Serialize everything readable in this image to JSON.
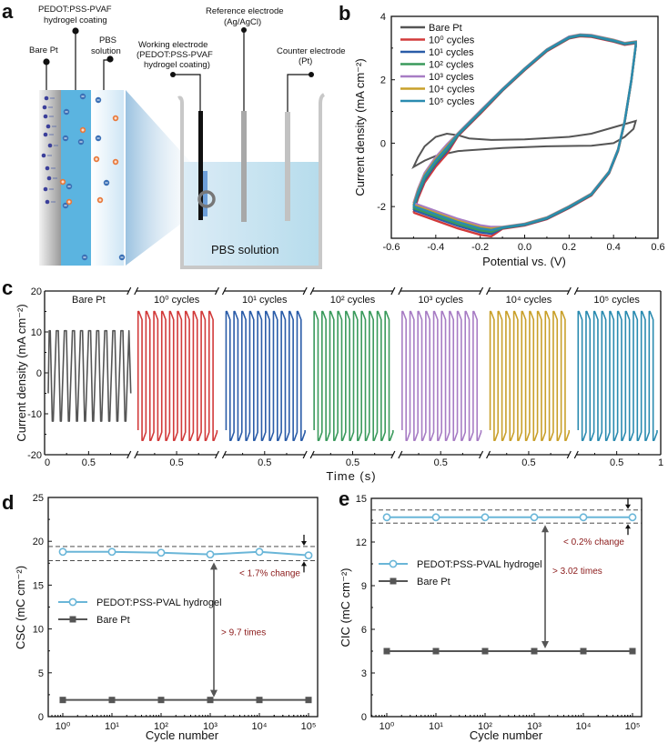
{
  "panels": {
    "a": {
      "label": "a"
    },
    "b": {
      "label": "b"
    },
    "c": {
      "label": "c"
    },
    "d": {
      "label": "d"
    },
    "e": {
      "label": "e"
    }
  },
  "diagram": {
    "labels": {
      "bare_pt": "Bare Pt",
      "coating": "PEDOT:PSS-PVAF hydrogel coating",
      "pbs_inset": "PBS solution",
      "working": "Working electrode (PEDOT:PSS-PVAF hydrogel coating)",
      "reference": "Reference electrode (Ag/AgCl)",
      "counter": "Counter electrode (Pt)",
      "pbs_beaker": "PBS solution"
    },
    "colors": {
      "hydrogel": "#5bb4e0",
      "solution": "#bfe2f0",
      "anion": "#3a6fb5",
      "cation": "#e8793b",
      "electron": "#3b3f9a"
    }
  },
  "chart_data": [
    {
      "id": "b",
      "type": "line",
      "title": "",
      "xlabel": "Potential vs. (V)",
      "ylabel": "Current density (mA cm⁻²)",
      "xlim": [
        -0.6,
        0.6
      ],
      "ylim": [
        -3,
        4
      ],
      "xticks": [
        -0.6,
        -0.4,
        -0.2,
        0.0,
        0.2,
        0.4,
        0.6
      ],
      "xtick_labels": [
        "-0.6",
        "-0.4",
        "-0.2",
        "0.0",
        "0.2",
        "0.4",
        "0.6"
      ],
      "yticks": [
        -2,
        0,
        2,
        4
      ],
      "ytick_labels": [
        "-2",
        "0",
        "2",
        "4"
      ],
      "legend_position": "top-left",
      "series": [
        {
          "name": "Bare Pt",
          "color": "#555555",
          "points": [
            [
              -0.5,
              -0.75
            ],
            [
              -0.48,
              -0.45
            ],
            [
              -0.45,
              -0.1
            ],
            [
              -0.4,
              0.2
            ],
            [
              -0.35,
              0.3
            ],
            [
              -0.3,
              0.25
            ],
            [
              -0.25,
              0.15
            ],
            [
              -0.15,
              0.1
            ],
            [
              0.0,
              0.12
            ],
            [
              0.2,
              0.2
            ],
            [
              0.3,
              0.3
            ],
            [
              0.4,
              0.5
            ],
            [
              0.5,
              0.7
            ],
            [
              0.49,
              0.45
            ],
            [
              0.45,
              0.2
            ],
            [
              0.4,
              0.0
            ],
            [
              0.3,
              -0.08
            ],
            [
              0.1,
              -0.1
            ],
            [
              -0.1,
              -0.15
            ],
            [
              -0.3,
              -0.25
            ],
            [
              -0.4,
              -0.4
            ],
            [
              -0.45,
              -0.55
            ],
            [
              -0.5,
              -0.75
            ]
          ]
        },
        {
          "name": "10⁰ cycles",
          "color": "#d23a3a",
          "offset": -0.12
        },
        {
          "name": "10¹ cycles",
          "color": "#2a5ca8",
          "offset": -0.08
        },
        {
          "name": "10² cycles",
          "color": "#3a9a5c",
          "offset": -0.05
        },
        {
          "name": "10³ cycles",
          "color": "#a77cc4",
          "offset": 0.03
        },
        {
          "name": "10⁴ cycles",
          "color": "#c9a02a",
          "offset": 0.0
        },
        {
          "name": "10⁵ cycles",
          "color": "#2a8bb0",
          "offset": -0.02
        }
      ],
      "hydrogel_loop": [
        [
          -0.5,
          -1.95
        ],
        [
          -0.48,
          -1.5
        ],
        [
          -0.45,
          -1.0
        ],
        [
          -0.4,
          -0.5
        ],
        [
          -0.35,
          -0.1
        ],
        [
          -0.3,
          0.3
        ],
        [
          -0.2,
          1.0
        ],
        [
          -0.1,
          1.7
        ],
        [
          0.0,
          2.35
        ],
        [
          0.1,
          2.95
        ],
        [
          0.2,
          3.35
        ],
        [
          0.25,
          3.42
        ],
        [
          0.3,
          3.4
        ],
        [
          0.4,
          3.25
        ],
        [
          0.45,
          3.15
        ],
        [
          0.5,
          3.2
        ],
        [
          0.5,
          3.1
        ],
        [
          0.48,
          2.0
        ],
        [
          0.45,
          0.7
        ],
        [
          0.42,
          -0.2
        ],
        [
          0.38,
          -0.9
        ],
        [
          0.3,
          -1.6
        ],
        [
          0.2,
          -2.0
        ],
        [
          0.1,
          -2.35
        ],
        [
          0.0,
          -2.55
        ],
        [
          -0.1,
          -2.65
        ],
        [
          -0.15,
          -2.7
        ],
        [
          -0.2,
          -2.65
        ],
        [
          -0.3,
          -2.45
        ],
        [
          -0.4,
          -2.2
        ],
        [
          -0.5,
          -1.95
        ]
      ]
    },
    {
      "id": "c",
      "type": "line",
      "xlabel": "Time (s)",
      "ylabel": "Current density (mA cm⁻²)",
      "ylim": [
        -20,
        20
      ],
      "yticks": [
        -20,
        -10,
        0,
        10,
        20
      ],
      "ytick_labels": [
        "-20",
        "-10",
        "0",
        "10",
        "20"
      ],
      "segment_xlim": [
        0,
        1
      ],
      "first_segment_tick_labels": [
        "0",
        "0.5"
      ],
      "segment_tick_label": "0.5",
      "last_segment_end_label": "1",
      "pulses_per_segment": 10,
      "segments": [
        {
          "name": "Bare Pt",
          "color": "#555555",
          "high": 10.3,
          "low": -11.8,
          "shape": "triangle"
        },
        {
          "name": "10⁰ cycles",
          "color": "#d23a3a",
          "high": 15,
          "low": -16.5,
          "shape": "square"
        },
        {
          "name": "10¹ cycles",
          "color": "#2a5ca8",
          "high": 15,
          "low": -16.5,
          "shape": "square"
        },
        {
          "name": "10² cycles",
          "color": "#3a9a5c",
          "high": 15,
          "low": -16.5,
          "shape": "square"
        },
        {
          "name": "10³ cycles",
          "color": "#a77cc4",
          "high": 15,
          "low": -16.5,
          "shape": "square"
        },
        {
          "name": "10⁴ cycles",
          "color": "#c9a02a",
          "high": 15,
          "low": -16.5,
          "shape": "square"
        },
        {
          "name": "10⁵ cycles",
          "color": "#2a8bb0",
          "high": 15,
          "low": -16.5,
          "shape": "square"
        }
      ]
    },
    {
      "id": "d",
      "type": "line",
      "xlabel": "Cycle number",
      "ylabel": "CSC (mC cm⁻²)",
      "xscale": "log",
      "x": [
        1,
        10,
        100,
        1000,
        10000,
        100000
      ],
      "xtick_labels": [
        "10⁰",
        "10¹",
        "10²",
        "10³",
        "10⁴",
        "10⁵"
      ],
      "ylim": [
        0,
        25
      ],
      "yticks": [
        0,
        5,
        10,
        15,
        20,
        25
      ],
      "ytick_labels": [
        "0",
        "5",
        "10",
        "15",
        "20",
        "25"
      ],
      "legend_position": "center-left",
      "series": [
        {
          "name": "PEDOT:PSS-PVAL hydrogel",
          "color": "#6ab6d8",
          "marker": "open-circle",
          "values": [
            18.8,
            18.8,
            18.7,
            18.5,
            18.8,
            18.4
          ]
        },
        {
          "name": "Bare Pt",
          "color": "#555555",
          "marker": "square",
          "values": [
            1.9,
            1.9,
            1.9,
            1.9,
            1.9,
            1.9
          ]
        }
      ],
      "dashed_lines": [
        19.4,
        17.8
      ],
      "annotations": {
        "change": "< 1.7% change",
        "ratio": "> 9.7 times"
      }
    },
    {
      "id": "e",
      "type": "line",
      "xlabel": "Cycle number",
      "ylabel": "CIC (mC cm⁻²)",
      "xscale": "log",
      "x": [
        1,
        10,
        100,
        1000,
        10000,
        100000
      ],
      "xtick_labels": [
        "10⁰",
        "10¹",
        "10²",
        "10³",
        "10⁴",
        "10⁵"
      ],
      "ylim": [
        0,
        15
      ],
      "yticks": [
        0,
        3,
        6,
        9,
        12,
        15
      ],
      "ytick_labels": [
        "0",
        "3",
        "6",
        "9",
        "12",
        "15"
      ],
      "legend_position": "upper-left",
      "series": [
        {
          "name": "PEDOT:PSS-PVAL hydrogel",
          "color": "#6ab6d8",
          "marker": "open-circle",
          "values": [
            13.7,
            13.7,
            13.7,
            13.7,
            13.7,
            13.7
          ]
        },
        {
          "name": "Bare Pt",
          "color": "#555555",
          "marker": "square",
          "values": [
            4.5,
            4.5,
            4.5,
            4.5,
            4.5,
            4.5
          ]
        }
      ],
      "dashed_lines": [
        14.2,
        13.3
      ],
      "annotations": {
        "change": "< 0.2% change",
        "ratio": "> 3.02 times"
      }
    }
  ]
}
